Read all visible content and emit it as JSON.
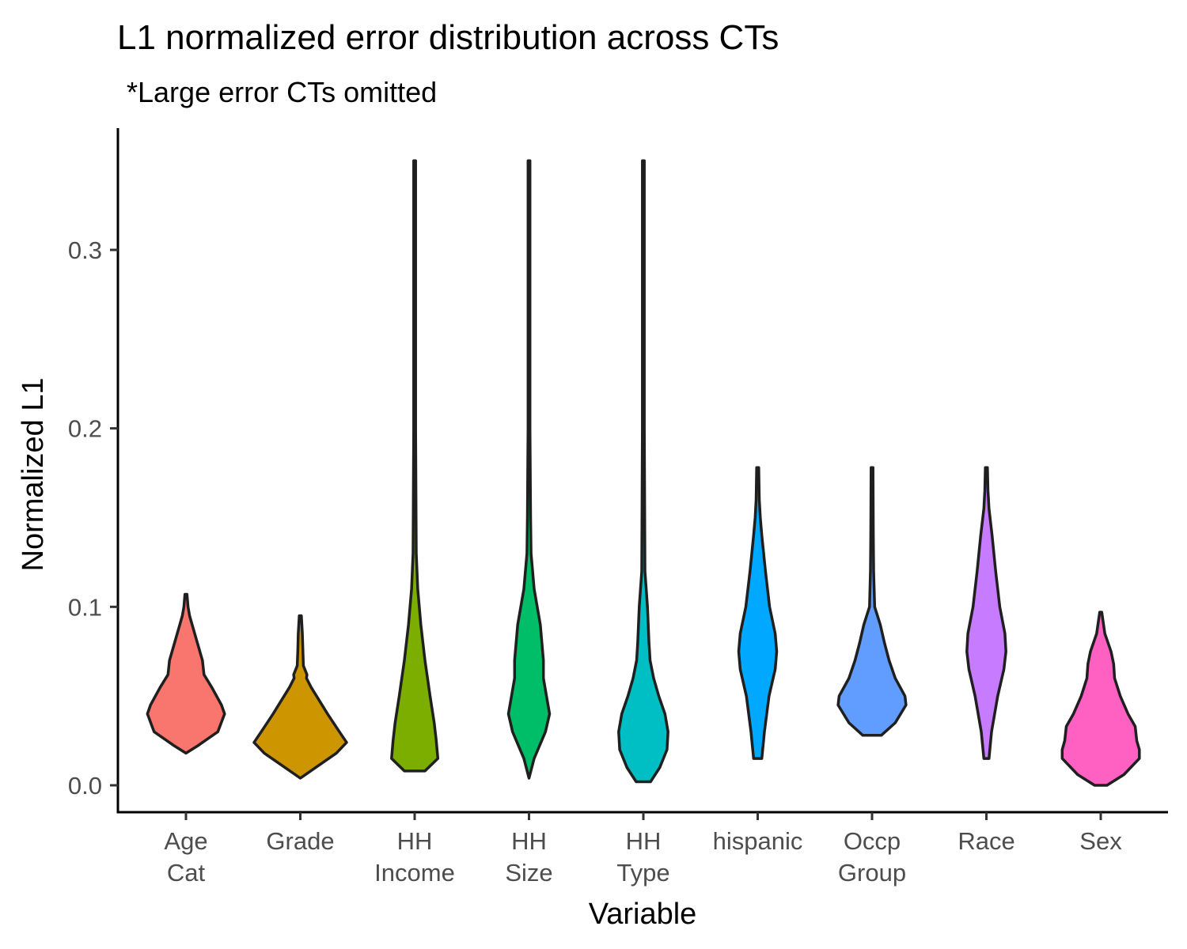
{
  "chart_data": {
    "type": "violin",
    "title": "L1 normalized error distribution across CTs",
    "subtitle": "*Large error CTs omitted",
    "xlabel": "Variable",
    "ylabel": "Normalized L1",
    "ylim": [
      -0.015,
      0.365
    ],
    "yticks": [
      0.0,
      0.1,
      0.2,
      0.3
    ],
    "ytick_labels": [
      "0.0",
      "0.1",
      "0.2",
      "0.3"
    ],
    "grid": false,
    "legend": "none",
    "categories": [
      {
        "label": [
          "Age",
          "Cat"
        ],
        "color": "#F8766D",
        "min": 0.018,
        "max": 0.107,
        "profile": [
          [
            0.018,
            0.0
          ],
          [
            0.022,
            0.22
          ],
          [
            0.03,
            0.62
          ],
          [
            0.04,
            0.75
          ],
          [
            0.045,
            0.69
          ],
          [
            0.055,
            0.5
          ],
          [
            0.062,
            0.35
          ],
          [
            0.07,
            0.32
          ],
          [
            0.08,
            0.22
          ],
          [
            0.09,
            0.12
          ],
          [
            0.095,
            0.07
          ],
          [
            0.1,
            0.04
          ],
          [
            0.107,
            0.02
          ]
        ]
      },
      {
        "label": [
          "Grade"
        ],
        "color": "#CD9600",
        "min": 0.004,
        "max": 0.095,
        "profile": [
          [
            0.004,
            0.0
          ],
          [
            0.01,
            0.3
          ],
          [
            0.018,
            0.7
          ],
          [
            0.024,
            0.9
          ],
          [
            0.03,
            0.76
          ],
          [
            0.04,
            0.53
          ],
          [
            0.047,
            0.38
          ],
          [
            0.055,
            0.21
          ],
          [
            0.06,
            0.12
          ],
          [
            0.062,
            0.13
          ],
          [
            0.067,
            0.06
          ],
          [
            0.075,
            0.05
          ],
          [
            0.085,
            0.04
          ],
          [
            0.095,
            0.02
          ]
        ]
      },
      {
        "label": [
          "HH",
          "Income"
        ],
        "color": "#7CAE00",
        "min": 0.008,
        "max": 0.35,
        "profile": [
          [
            0.008,
            0.2
          ],
          [
            0.015,
            0.45
          ],
          [
            0.025,
            0.42
          ],
          [
            0.035,
            0.38
          ],
          [
            0.05,
            0.3
          ],
          [
            0.07,
            0.2
          ],
          [
            0.09,
            0.12
          ],
          [
            0.11,
            0.06
          ],
          [
            0.13,
            0.03
          ],
          [
            0.2,
            0.018
          ],
          [
            0.35,
            0.018
          ]
        ]
      },
      {
        "label": [
          "HH",
          "Size"
        ],
        "color": "#00BE67",
        "min": 0.004,
        "max": 0.35,
        "profile": [
          [
            0.004,
            0.0
          ],
          [
            0.015,
            0.1
          ],
          [
            0.03,
            0.32
          ],
          [
            0.04,
            0.4
          ],
          [
            0.05,
            0.34
          ],
          [
            0.06,
            0.28
          ],
          [
            0.07,
            0.28
          ],
          [
            0.09,
            0.22
          ],
          [
            0.11,
            0.1
          ],
          [
            0.13,
            0.04
          ],
          [
            0.15,
            0.03
          ],
          [
            0.2,
            0.018
          ],
          [
            0.35,
            0.018
          ]
        ]
      },
      {
        "label": [
          "HH",
          "Type"
        ],
        "color": "#00BFC4",
        "min": 0.002,
        "max": 0.35,
        "profile": [
          [
            0.002,
            0.14
          ],
          [
            0.01,
            0.32
          ],
          [
            0.02,
            0.46
          ],
          [
            0.03,
            0.48
          ],
          [
            0.04,
            0.42
          ],
          [
            0.05,
            0.3
          ],
          [
            0.06,
            0.2
          ],
          [
            0.07,
            0.13
          ],
          [
            0.08,
            0.11
          ],
          [
            0.1,
            0.08
          ],
          [
            0.12,
            0.03
          ],
          [
            0.2,
            0.018
          ],
          [
            0.35,
            0.018
          ]
        ]
      },
      {
        "label": [
          "hispanic"
        ],
        "color": "#00A9FF",
        "min": 0.015,
        "max": 0.178,
        "profile": [
          [
            0.015,
            0.08
          ],
          [
            0.03,
            0.13
          ],
          [
            0.05,
            0.22
          ],
          [
            0.065,
            0.34
          ],
          [
            0.075,
            0.37
          ],
          [
            0.085,
            0.34
          ],
          [
            0.1,
            0.23
          ],
          [
            0.12,
            0.15
          ],
          [
            0.14,
            0.08
          ],
          [
            0.15,
            0.05
          ],
          [
            0.16,
            0.03
          ],
          [
            0.178,
            0.02
          ]
        ]
      },
      {
        "label": [
          "Occp",
          "Group"
        ],
        "color": "#619CFF",
        "min": 0.028,
        "max": 0.178,
        "profile": [
          [
            0.028,
            0.18
          ],
          [
            0.035,
            0.45
          ],
          [
            0.045,
            0.66
          ],
          [
            0.05,
            0.64
          ],
          [
            0.06,
            0.45
          ],
          [
            0.07,
            0.33
          ],
          [
            0.08,
            0.24
          ],
          [
            0.09,
            0.16
          ],
          [
            0.1,
            0.05
          ],
          [
            0.12,
            0.03
          ],
          [
            0.14,
            0.025
          ],
          [
            0.178,
            0.018
          ]
        ]
      },
      {
        "label": [
          "Race"
        ],
        "color": "#C77CFF",
        "min": 0.015,
        "max": 0.178,
        "profile": [
          [
            0.015,
            0.05
          ],
          [
            0.03,
            0.1
          ],
          [
            0.05,
            0.22
          ],
          [
            0.065,
            0.34
          ],
          [
            0.075,
            0.38
          ],
          [
            0.085,
            0.36
          ],
          [
            0.1,
            0.26
          ],
          [
            0.12,
            0.18
          ],
          [
            0.14,
            0.11
          ],
          [
            0.155,
            0.05
          ],
          [
            0.165,
            0.03
          ],
          [
            0.178,
            0.02
          ]
        ]
      },
      {
        "label": [
          "Sex"
        ],
        "color": "#FF61C3",
        "min": 0.0,
        "max": 0.097,
        "profile": [
          [
            0.0,
            0.12
          ],
          [
            0.006,
            0.45
          ],
          [
            0.015,
            0.75
          ],
          [
            0.02,
            0.75
          ],
          [
            0.025,
            0.7
          ],
          [
            0.033,
            0.67
          ],
          [
            0.04,
            0.53
          ],
          [
            0.05,
            0.38
          ],
          [
            0.06,
            0.27
          ],
          [
            0.068,
            0.25
          ],
          [
            0.075,
            0.2
          ],
          [
            0.085,
            0.08
          ],
          [
            0.097,
            0.02
          ]
        ]
      }
    ]
  }
}
